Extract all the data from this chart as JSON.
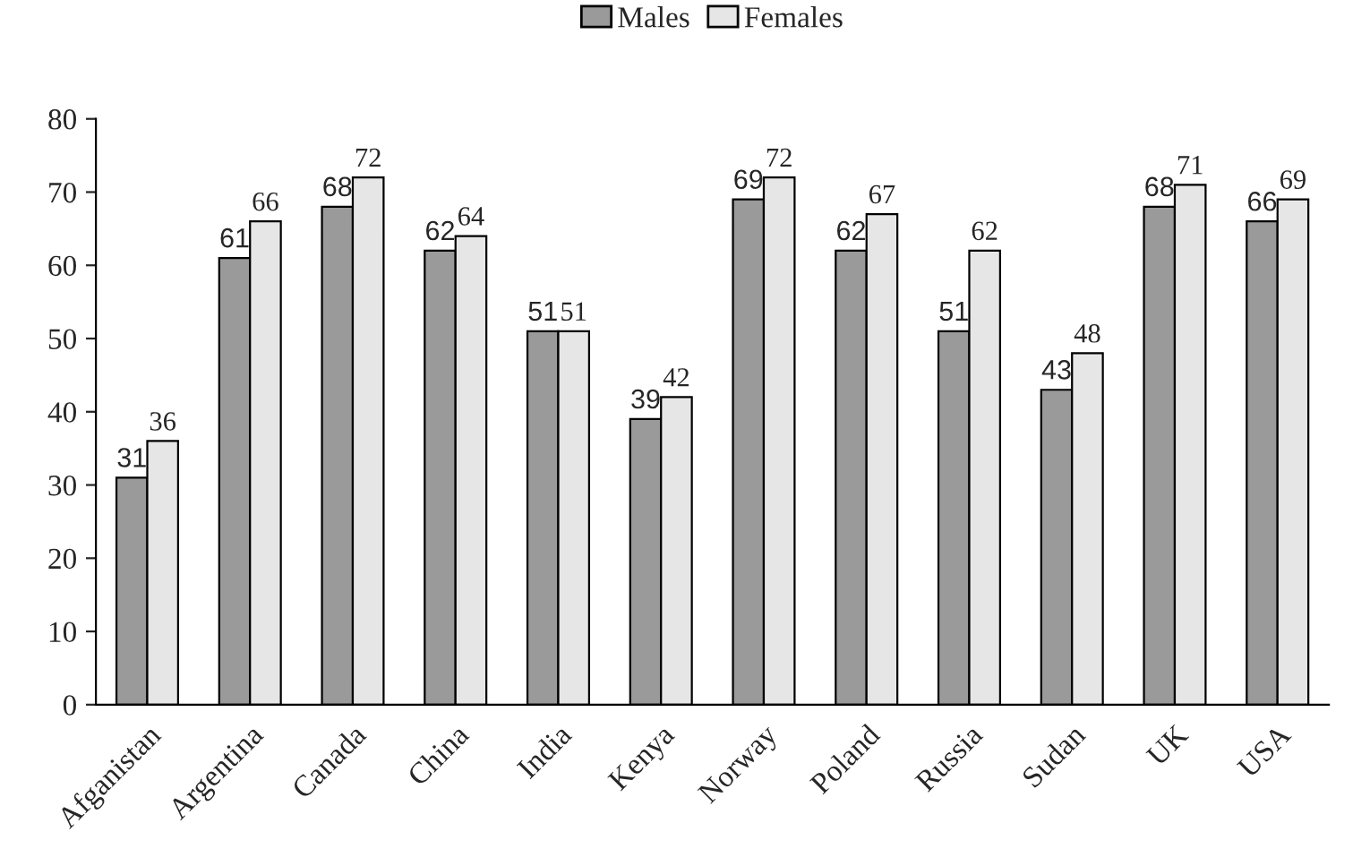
{
  "chart_data": {
    "type": "bar",
    "categories": [
      "Afganistan",
      "Argentina",
      "Canada",
      "China",
      "India",
      "Kenya",
      "Norway",
      "Poland",
      "Russia",
      "Sudan",
      "UK",
      "USA"
    ],
    "series": [
      {
        "name": "Males",
        "color": "#9a9a9a",
        "values": [
          31,
          61,
          68,
          62,
          51,
          39,
          69,
          62,
          51,
          43,
          68,
          66
        ]
      },
      {
        "name": "Females",
        "color": "#e6e6e6",
        "values": [
          36,
          66,
          72,
          64,
          51,
          42,
          72,
          67,
          62,
          48,
          71,
          69
        ]
      }
    ],
    "ylim": [
      0,
      80
    ],
    "yticks": [
      0,
      10,
      20,
      30,
      40,
      50,
      60,
      70,
      80
    ],
    "grid": false,
    "legend": "top",
    "data_labels": true
  }
}
